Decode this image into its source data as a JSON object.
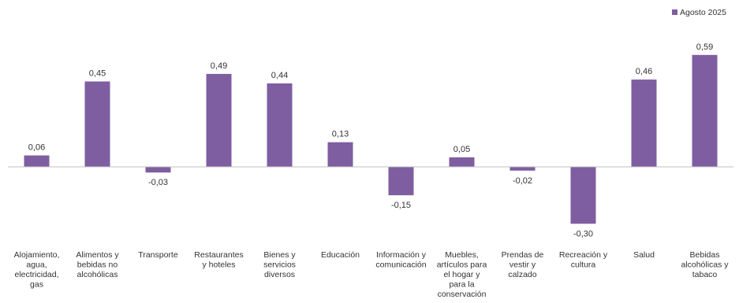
{
  "chart_data": {
    "type": "bar",
    "categories": [
      "Alojamiento, agua, electricidad, gas",
      "Alimentos y bebidas no alcohólicas",
      "Transporte",
      "Restaurantes y hoteles",
      "Bienes y servicios diversos",
      "Educación",
      "Información y comunicación",
      "Muebles, artículos para el hogar y para la conservación",
      "Prendas de vestir y calzado",
      "Recreación y cultura",
      "Salud",
      "Bebidas alcohólicas y tabaco"
    ],
    "category_lines": [
      [
        "Alojamiento,",
        "agua,",
        "electricidad,",
        "gas"
      ],
      [
        "Alimentos y",
        "bebidas no",
        "alcohólicas"
      ],
      [
        "Transporte"
      ],
      [
        "Restaurantes",
        "y hoteles"
      ],
      [
        "Bienes y",
        "servicios",
        "diversos"
      ],
      [
        "Educación"
      ],
      [
        "Información y",
        "comunicación"
      ],
      [
        "Muebles,",
        "artículos para",
        "el hogar y",
        "para la",
        "conservación"
      ],
      [
        "Prendas de",
        "vestir y",
        "calzado"
      ],
      [
        "Recreación y",
        "cultura"
      ],
      [
        "Salud"
      ],
      [
        "Bebidas",
        "alcohólicas y",
        "tabaco"
      ]
    ],
    "series": [
      {
        "name": "Agosto 2025",
        "values": [
          0.06,
          0.45,
          -0.03,
          0.49,
          0.44,
          0.13,
          -0.15,
          0.05,
          -0.02,
          -0.3,
          0.46,
          0.59
        ],
        "labels": [
          "0,06",
          "0,45",
          "-0,03",
          "0,49",
          "0,44",
          "0,13",
          "-0,15",
          "0,05",
          "-0,02",
          "-0,30",
          "0,46",
          "0,59"
        ],
        "color": "#7e5ea1"
      }
    ],
    "title": "",
    "xlabel": "",
    "ylabel": "",
    "ylim": [
      -0.3,
      0.59
    ],
    "grid": false,
    "legend_position": "top-right"
  }
}
